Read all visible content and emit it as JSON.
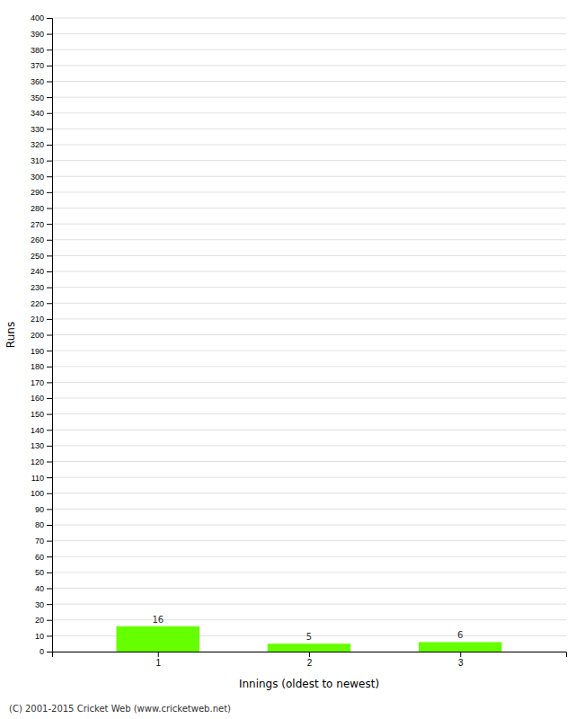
{
  "chart_data": {
    "type": "bar",
    "x": [
      1,
      2,
      3
    ],
    "values": [
      16,
      5,
      6
    ],
    "color": "#66ff00",
    "xlabel": "Innings (oldest to newest)",
    "ylabel": "Runs",
    "xlim": [
      0.3,
      3.7
    ],
    "xticks": [
      1,
      2,
      3
    ],
    "ylim": [
      0,
      400
    ],
    "yticks": [
      0,
      10,
      20,
      30,
      40,
      50,
      60,
      70,
      80,
      90,
      100,
      110,
      120,
      130,
      140,
      150,
      160,
      170,
      180,
      190,
      200,
      210,
      220,
      230,
      240,
      250,
      260,
      270,
      280,
      290,
      300,
      310,
      320,
      330,
      340,
      350,
      360,
      370,
      380,
      390,
      400
    ],
    "grid": true,
    "data_labels": true,
    "footer": "(C) 2001-2015 Cricket Web (www.cricketweb.net)"
  }
}
